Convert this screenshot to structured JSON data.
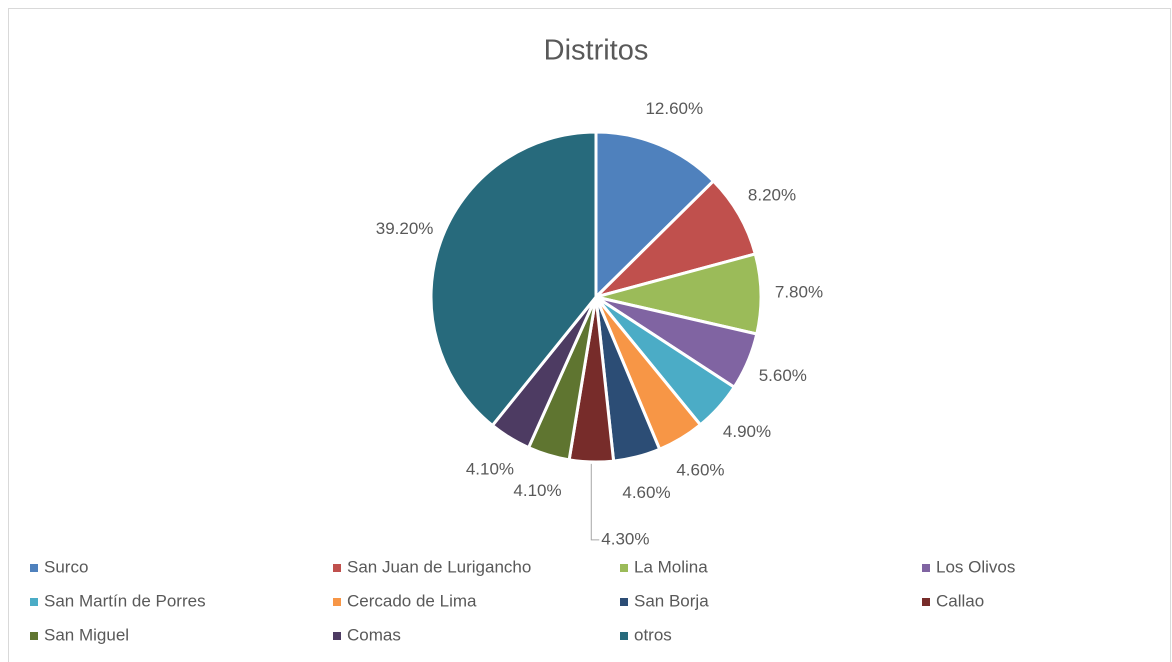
{
  "chart_data": {
    "type": "pie",
    "title": "Distritos",
    "categories": [
      "Surco",
      "San Juan de Lurigancho",
      "La Molina",
      "Los Olivos",
      "San Martín de Porres",
      "Cercado de Lima",
      "San Borja",
      "Callao",
      "San Miguel",
      "Comas",
      "otros"
    ],
    "values": [
      12.6,
      8.2,
      7.8,
      5.6,
      4.9,
      4.6,
      4.6,
      4.3,
      4.1,
      4.1,
      39.2
    ],
    "value_labels": [
      "12.60%",
      "8.20%",
      "7.80%",
      "5.60%",
      "4.90%",
      "4.60%",
      "4.60%",
      "4.30%",
      "4.10%",
      "4.10%",
      "39.20%"
    ],
    "colors": [
      "#4f81bd",
      "#c0504d",
      "#9bbb59",
      "#8064a2",
      "#4bacc6",
      "#f79646",
      "#2c4d75",
      "#772c2a",
      "#5f7530",
      "#4d3b62",
      "#276a7c"
    ],
    "legend": "bottom"
  }
}
